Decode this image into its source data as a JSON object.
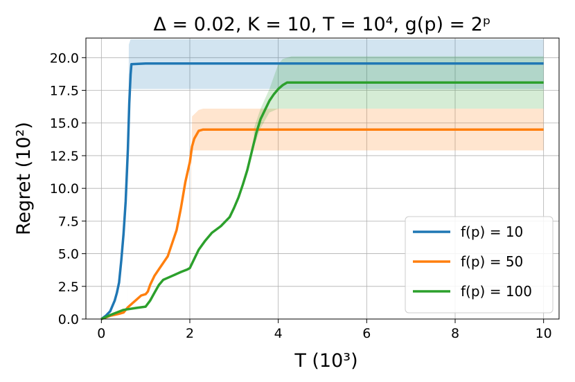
{
  "chart_data": {
    "type": "line",
    "title": "Δ = 0.02, K = 10, T = 10⁴, g(p) = 2ᵖ",
    "xlabel": "T (10³)",
    "ylabel": "Regret (10²)",
    "xlim": [
      -0.35,
      10.35
    ],
    "ylim": [
      0,
      21.5
    ],
    "xticks": [
      0,
      2,
      4,
      6,
      8,
      10
    ],
    "yticks": [
      0.0,
      2.5,
      5.0,
      7.5,
      10.0,
      12.5,
      15.0,
      17.5,
      20.0
    ],
    "xtick_labels": [
      "0",
      "2",
      "4",
      "6",
      "8",
      "10"
    ],
    "ytick_labels": [
      "0.0",
      "2.5",
      "5.0",
      "7.5",
      "10.0",
      "12.5",
      "15.0",
      "17.5",
      "20.0"
    ],
    "grid": true,
    "legend_position": "lower-right",
    "series": [
      {
        "name": "f(p) = 10",
        "color": "#1f77b4",
        "points": [
          [
            0,
            0
          ],
          [
            0.1,
            0.25
          ],
          [
            0.2,
            0.6
          ],
          [
            0.25,
            1.0
          ],
          [
            0.3,
            1.4
          ],
          [
            0.35,
            2.0
          ],
          [
            0.4,
            2.8
          ],
          [
            0.45,
            4.5
          ],
          [
            0.5,
            6.5
          ],
          [
            0.55,
            9.0
          ],
          [
            0.6,
            13.0
          ],
          [
            0.63,
            16.5
          ],
          [
            0.66,
            18.7
          ],
          [
            0.68,
            19.5
          ],
          [
            1.0,
            19.55
          ],
          [
            10,
            19.55
          ]
        ],
        "band": [
          [
            0.6,
            0,
            0
          ],
          [
            0.62,
            16.0,
            21.0
          ],
          [
            0.66,
            17.6,
            21.4
          ],
          [
            10,
            17.6,
            21.4
          ]
        ]
      },
      {
        "name": "f(p) = 50",
        "color": "#ff7f0e",
        "points": [
          [
            0,
            0
          ],
          [
            0.2,
            0.25
          ],
          [
            0.4,
            0.4
          ],
          [
            0.5,
            0.5
          ],
          [
            0.6,
            0.9
          ],
          [
            0.7,
            1.2
          ],
          [
            0.8,
            1.5
          ],
          [
            0.9,
            1.8
          ],
          [
            1.0,
            1.9
          ],
          [
            1.05,
            2.1
          ],
          [
            1.1,
            2.6
          ],
          [
            1.2,
            3.3
          ],
          [
            1.3,
            3.8
          ],
          [
            1.4,
            4.3
          ],
          [
            1.5,
            4.8
          ],
          [
            1.6,
            5.8
          ],
          [
            1.7,
            6.8
          ],
          [
            1.8,
            8.5
          ],
          [
            1.9,
            10.5
          ],
          [
            2.0,
            12.0
          ],
          [
            2.05,
            13.2
          ],
          [
            2.1,
            13.8
          ],
          [
            2.2,
            14.4
          ],
          [
            2.3,
            14.5
          ],
          [
            3.0,
            14.5
          ],
          [
            10,
            14.5
          ]
        ],
        "band": [
          [
            2.0,
            0,
            0
          ],
          [
            2.05,
            12.9,
            15.5
          ],
          [
            2.2,
            12.9,
            16.0
          ],
          [
            2.3,
            12.9,
            16.1
          ],
          [
            10,
            12.9,
            16.1
          ]
        ]
      },
      {
        "name": "f(p) = 100",
        "color": "#2ca02c",
        "points": [
          [
            0,
            0
          ],
          [
            0.2,
            0.3
          ],
          [
            0.5,
            0.7
          ],
          [
            0.8,
            0.85
          ],
          [
            1.0,
            0.95
          ],
          [
            1.1,
            1.4
          ],
          [
            1.2,
            2.0
          ],
          [
            1.3,
            2.6
          ],
          [
            1.4,
            3.0
          ],
          [
            1.6,
            3.3
          ],
          [
            1.8,
            3.6
          ],
          [
            1.95,
            3.8
          ],
          [
            2.0,
            3.9
          ],
          [
            2.1,
            4.6
          ],
          [
            2.2,
            5.3
          ],
          [
            2.35,
            6.0
          ],
          [
            2.5,
            6.6
          ],
          [
            2.7,
            7.1
          ],
          [
            2.9,
            7.8
          ],
          [
            3.0,
            8.5
          ],
          [
            3.1,
            9.3
          ],
          [
            3.2,
            10.3
          ],
          [
            3.3,
            11.4
          ],
          [
            3.4,
            12.8
          ],
          [
            3.5,
            14.2
          ],
          [
            3.6,
            15.3
          ],
          [
            3.7,
            16.0
          ],
          [
            3.8,
            16.7
          ],
          [
            3.9,
            17.2
          ],
          [
            4.0,
            17.6
          ],
          [
            4.1,
            17.9
          ],
          [
            4.2,
            18.1
          ],
          [
            5.0,
            18.1
          ],
          [
            10,
            18.1
          ]
        ],
        "band": [
          [
            3.45,
            13.2,
            14.6
          ],
          [
            3.6,
            14.6,
            16.1
          ],
          [
            3.8,
            15.8,
            17.6
          ],
          [
            4.0,
            16.1,
            19.5
          ],
          [
            4.1,
            16.1,
            19.9
          ],
          [
            4.3,
            16.1,
            20.1
          ],
          [
            10,
            16.1,
            20.1
          ]
        ]
      }
    ]
  }
}
